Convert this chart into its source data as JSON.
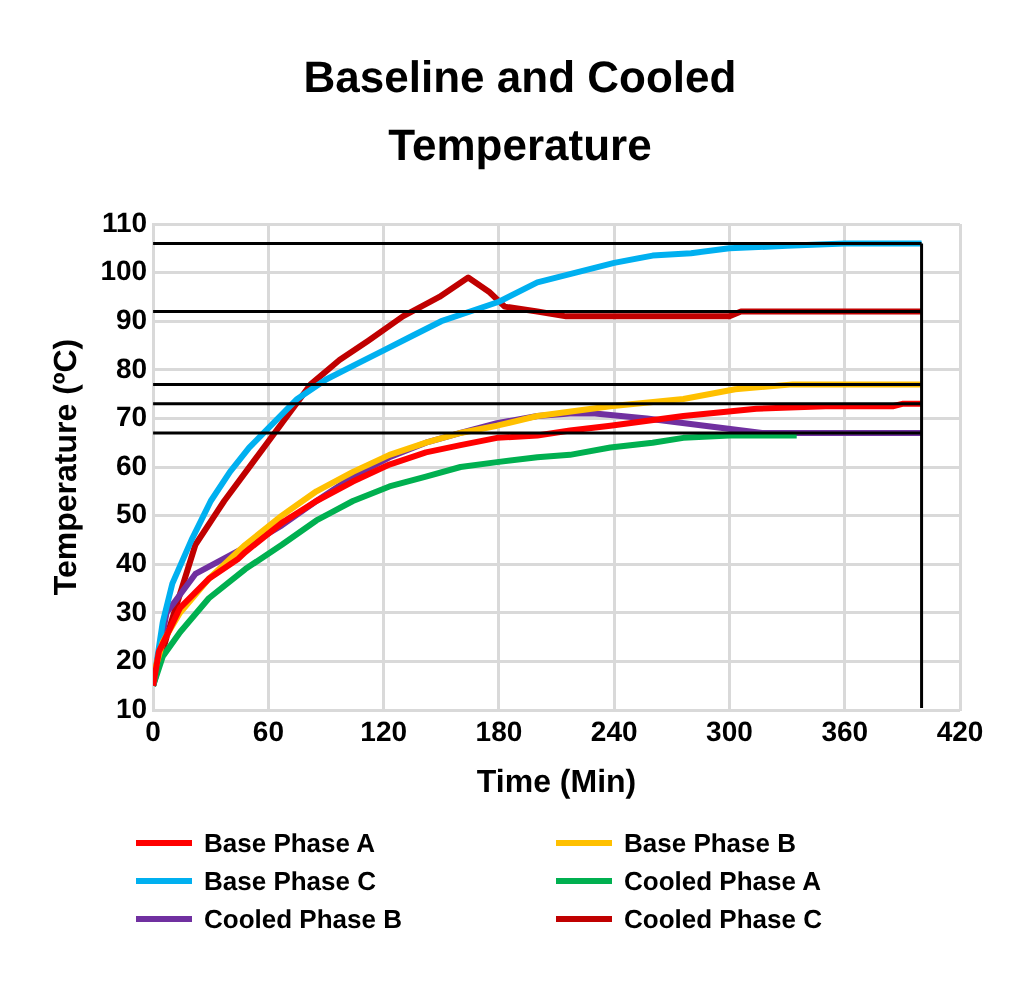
{
  "chart_data": {
    "type": "line",
    "title": "Baseline and Cooled Temperature",
    "xlabel": "Time (Min)",
    "ylabel": "Temperature (ºC)",
    "xlim": [
      0,
      420
    ],
    "xticks": [
      0,
      60,
      120,
      180,
      240,
      300,
      360,
      420
    ],
    "ylim": [
      10,
      110
    ],
    "yticks": [
      10,
      20,
      30,
      40,
      50,
      60,
      70,
      80,
      90,
      100,
      110
    ],
    "grid": true,
    "legend": "bottom",
    "marker": "none",
    "line_style": "solid",
    "series": [
      {
        "name": "Base Phase A",
        "color": "#ff0000",
        "x": [
          0,
          3,
          14,
          29,
          44,
          48,
          67,
          85,
          104,
          123,
          142,
          160,
          179,
          200,
          217,
          238,
          276,
          314,
          350,
          385,
          390,
          400
        ],
        "values": [
          15,
          22,
          31,
          37,
          41,
          42.5,
          48.5,
          53,
          57,
          60.5,
          63,
          64.5,
          66,
          66.5,
          67.5,
          68.5,
          70.5,
          72,
          72.5,
          72.5,
          73,
          73
        ]
      },
      {
        "name": "Base Phase B",
        "color": "#ffc000",
        "x": [
          0,
          5,
          14,
          29,
          48,
          67,
          85,
          104,
          123,
          142,
          160,
          179,
          200,
          238,
          276,
          303,
          333,
          360,
          400
        ],
        "values": [
          17,
          24,
          30,
          37,
          44,
          50,
          55,
          59,
          62.5,
          65,
          67,
          68.5,
          70.5,
          72.5,
          74,
          76,
          77,
          77,
          77
        ]
      },
      {
        "name": "Base Phase C",
        "color": "#00b0f0",
        "x": [
          0,
          5,
          10,
          20,
          30,
          40,
          50,
          60,
          75,
          90,
          105,
          120,
          135,
          150,
          165,
          180,
          200,
          220,
          240,
          260,
          280,
          300,
          330,
          360,
          380,
          400
        ],
        "values": [
          15,
          28,
          36,
          45,
          53,
          59,
          64,
          68,
          74,
          78,
          81,
          84,
          87,
          90,
          92,
          94,
          98,
          100,
          102,
          103.5,
          104,
          105,
          105.5,
          106,
          106,
          106
        ]
      },
      {
        "name": "Cooled Phase A",
        "color": "#00b050",
        "x": [
          0,
          5,
          14,
          29,
          48,
          67,
          85,
          104,
          123,
          142,
          160,
          179,
          200,
          217,
          238,
          260,
          276,
          300,
          335
        ],
        "values": [
          15,
          21,
          26,
          33,
          39,
          44,
          49,
          53,
          56,
          58,
          60,
          61,
          62,
          62.5,
          64,
          65,
          66,
          66.5,
          66.5
        ]
      },
      {
        "name": "Cooled Phase B",
        "color": "#7030a0",
        "x": [
          0,
          7,
          22,
          48,
          67,
          85,
          104,
          123,
          142,
          160,
          179,
          200,
          217,
          230,
          257,
          287,
          317,
          400
        ],
        "values": [
          15,
          30,
          38,
          43.5,
          48,
          53,
          58,
          62,
          65,
          67,
          69,
          70.5,
          71,
          71,
          70,
          68.5,
          67,
          67
        ]
      },
      {
        "name": "Cooled Phase C",
        "color": "#c00000",
        "x": [
          0,
          7,
          22,
          37,
          52,
          67,
          82,
          97,
          112,
          130,
          149,
          164,
          175,
          183,
          200,
          215,
          240,
          300,
          306,
          400
        ],
        "values": [
          15,
          25,
          44,
          53,
          61,
          69,
          77,
          82,
          86,
          91,
          95,
          99,
          96,
          93,
          92,
          91,
          91,
          91,
          92,
          92
        ]
      }
    ],
    "ref_lines": [
      {
        "axis": "y",
        "value": 106,
        "color": "#000000"
      },
      {
        "axis": "y",
        "value": 92,
        "color": "#000000"
      },
      {
        "axis": "y",
        "value": 77,
        "color": "#000000"
      },
      {
        "axis": "y",
        "value": 73,
        "color": "#000000"
      },
      {
        "axis": "y",
        "value": 67,
        "color": "#000000"
      },
      {
        "axis": "x",
        "value": 400,
        "color": "#000000"
      }
    ]
  }
}
